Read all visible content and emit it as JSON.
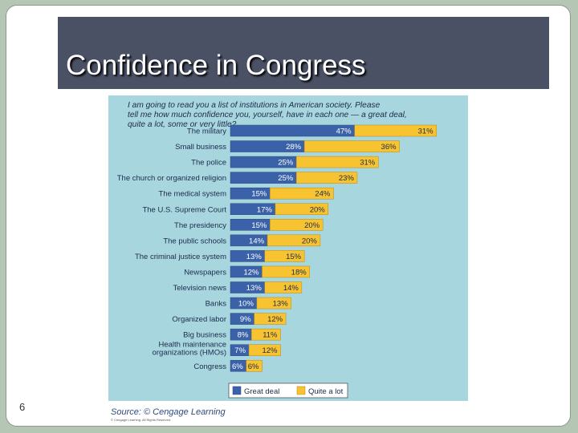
{
  "slide": {
    "title": "Confidence in Congress",
    "page_number": "6"
  },
  "colors": {
    "background": "#b5c7b4",
    "title_bar": "#4a5165",
    "chart_bg": "#a7d6de",
    "great_deal": "#3b62a8",
    "quite_a_lot": "#f7c331"
  },
  "chart_data": {
    "type": "bar",
    "orientation": "horizontal",
    "stacked": true,
    "question": "I am going to read you a list of institutions in American society. Please tell me how much confidence you, yourself, have in each one — a great deal, quite a lot, some or very little?",
    "categories": [
      "The military",
      "Small business",
      "The police",
      "The church or organized religion",
      "The medical system",
      "The U.S. Supreme Court",
      "The presidency",
      "The public schools",
      "The criminal justice system",
      "Newspapers",
      "Television news",
      "Banks",
      "Organized labor",
      "Big business",
      "Health maintenance organizations (HMOs)",
      "Congress"
    ],
    "series": [
      {
        "name": "Great deal",
        "values": [
          47,
          28,
          25,
          25,
          15,
          17,
          15,
          14,
          13,
          12,
          13,
          10,
          9,
          8,
          7,
          6
        ]
      },
      {
        "name": "Quite a lot",
        "values": [
          31,
          36,
          31,
          23,
          24,
          20,
          20,
          20,
          15,
          18,
          14,
          13,
          12,
          11,
          12,
          6
        ]
      }
    ],
    "value_labels": [
      [
        "47%",
        "31%"
      ],
      [
        "28%",
        "36%"
      ],
      [
        "25%",
        "31%"
      ],
      [
        "25%",
        "23%"
      ],
      [
        "15%",
        "24%"
      ],
      [
        "17%",
        "20%"
      ],
      [
        "15%",
        "20%"
      ],
      [
        "14%",
        "20%"
      ],
      [
        "13%",
        "15%"
      ],
      [
        "12%",
        "18%"
      ],
      [
        "13%",
        "14%"
      ],
      [
        "10%",
        "13%"
      ],
      [
        "9%",
        "12%"
      ],
      [
        "8%",
        "11%"
      ],
      [
        "7%",
        "12%"
      ],
      [
        "6%",
        "6%"
      ]
    ],
    "legend": [
      "Great deal",
      "Quite a lot"
    ],
    "legend_position": "bottom",
    "source": "Source: © Cengage Learning",
    "copyright": "© Cengage Learning. All Rights Reserved."
  }
}
